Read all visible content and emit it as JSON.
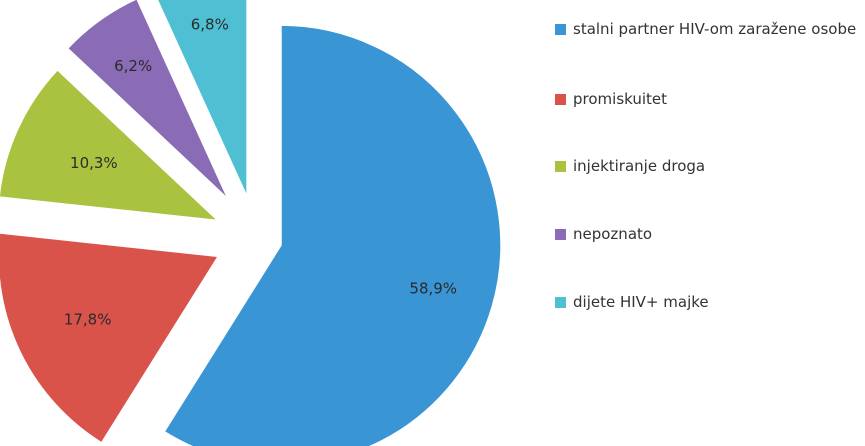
{
  "chart_data": {
    "type": "pie",
    "exploded": true,
    "legend_position": "right",
    "slices": [
      {
        "label": "stalni partner HIV-om zaražene osobe",
        "value": 58.9,
        "value_label": "58,9%",
        "color": "#3a95d4"
      },
      {
        "label": "promiskuitet",
        "value": 17.8,
        "value_label": "17,8%",
        "color": "#d9534a"
      },
      {
        "label": "injektiranje droga",
        "value": 10.3,
        "value_label": "10,3%",
        "color": "#a9c23f"
      },
      {
        "label": "nepoznato",
        "value": 6.2,
        "value_label": "6,2%",
        "color": "#8a6bb5"
      },
      {
        "label": "dijete HIV+ majke",
        "value": 6.8,
        "value_label": "6,8%",
        "color": "#4fbfd4"
      }
    ]
  }
}
